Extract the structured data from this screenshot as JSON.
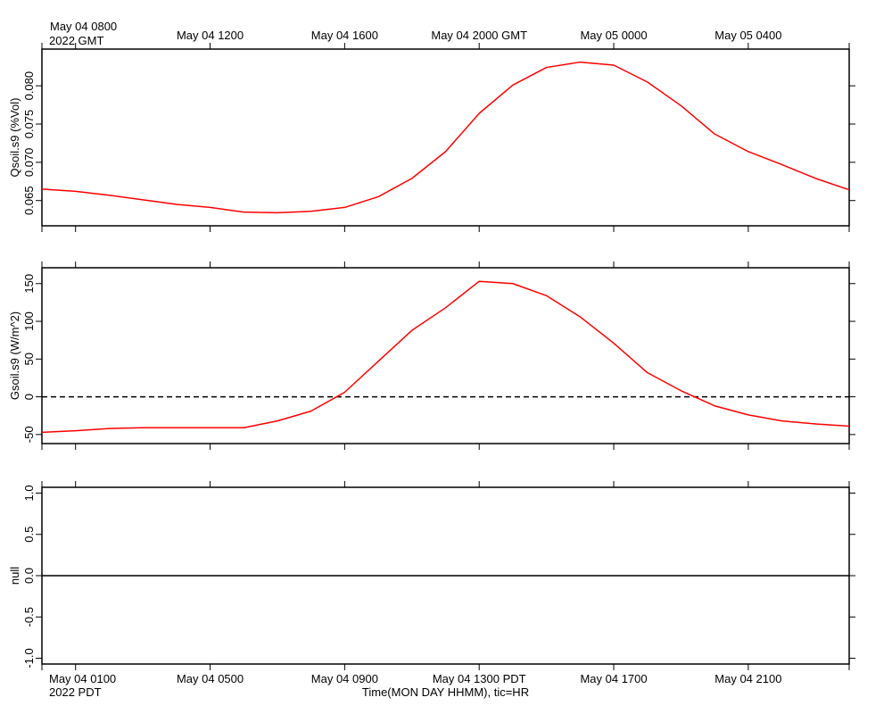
{
  "chart_data": [
    {
      "type": "line",
      "ylabel": "Qsoil.s9 (%Vol)",
      "xlim": [
        0,
        24
      ],
      "top_xticks": [
        {
          "value": 1,
          "label": "May 04 0800"
        },
        {
          "value": 5,
          "label": "May 04 1200"
        },
        {
          "value": 9,
          "label": "May 04 1600"
        },
        {
          "value": 13,
          "label": "May 04 2000 GMT"
        },
        {
          "value": 17,
          "label": "May 05 0000"
        },
        {
          "value": 21,
          "label": "May 05 0400"
        }
      ],
      "year_label": "2022 GMT",
      "x": [
        0,
        1,
        2,
        3,
        4,
        5,
        6,
        7,
        8,
        9,
        10,
        11,
        12,
        13,
        14,
        15,
        16,
        17,
        18,
        19,
        20,
        21,
        22,
        23,
        24
      ],
      "series": [
        {
          "color": "#ff0000",
          "values": [
            0.0665,
            0.0662,
            0.0657,
            0.0651,
            0.0645,
            0.0641,
            0.0635,
            0.0634,
            0.0636,
            0.0641,
            0.0655,
            0.0679,
            0.0714,
            0.0764,
            0.0801,
            0.0824,
            0.0831,
            0.0827,
            0.0805,
            0.0774,
            0.0737,
            0.0714,
            0.0697,
            0.0679,
            0.0664
          ]
        }
      ],
      "ylim": [
        0.0617,
        0.0848
      ],
      "yticks": [
        0.065,
        {
          "value": 0.07,
          "label": "0.070"
        },
        0.075,
        {
          "value": 0.08,
          "label": "0.080"
        }
      ]
    },
    {
      "type": "line",
      "ylabel": "Gsoil.s9 (W/m^2)",
      "xlim": [
        0,
        24
      ],
      "x": [
        0,
        1,
        2,
        3,
        4,
        5,
        6,
        7,
        8,
        9,
        10,
        11,
        12,
        13,
        14,
        15,
        16,
        17,
        18,
        19,
        20,
        21,
        22,
        23,
        24
      ],
      "series": [
        {
          "color": "#ff0000",
          "values": [
            -47,
            -45,
            -42,
            -41,
            -41,
            -41,
            -41,
            -32,
            -19,
            6,
            47,
            88,
            118,
            153,
            150,
            134,
            106,
            71,
            32,
            8,
            -12,
            -24,
            -32,
            -36,
            -39
          ]
        }
      ],
      "ylim": [
        -62,
        171
      ],
      "yticks": [
        -50,
        0,
        50,
        100,
        150
      ],
      "hline": {
        "value": 0,
        "style": "dashed"
      }
    },
    {
      "type": "line",
      "ylabel": "null",
      "xlim": [
        0,
        24
      ],
      "xticks": [
        {
          "value": 1,
          "label": "May 04 0100"
        },
        {
          "value": 5,
          "label": "May 04 0500"
        },
        {
          "value": 9,
          "label": "May 04 0900"
        },
        {
          "value": 13,
          "label": "May 04 1300 PDT"
        },
        {
          "value": 17,
          "label": "May 04 1700"
        },
        {
          "value": 21,
          "label": "May 04 2100"
        }
      ],
      "year_label": "2022 PDT",
      "xlabel": "Time(MON DAY HHMM), tic=HR",
      "ylim": [
        -1.07,
        1.07
      ],
      "yticks": [
        {
          "value": -1,
          "label": "-1.0"
        },
        -0.5,
        {
          "value": 0,
          "label": "0.0"
        },
        0.5,
        {
          "value": 1,
          "label": "1.0"
        }
      ],
      "hline": {
        "value": 0,
        "style": "solid"
      }
    }
  ]
}
